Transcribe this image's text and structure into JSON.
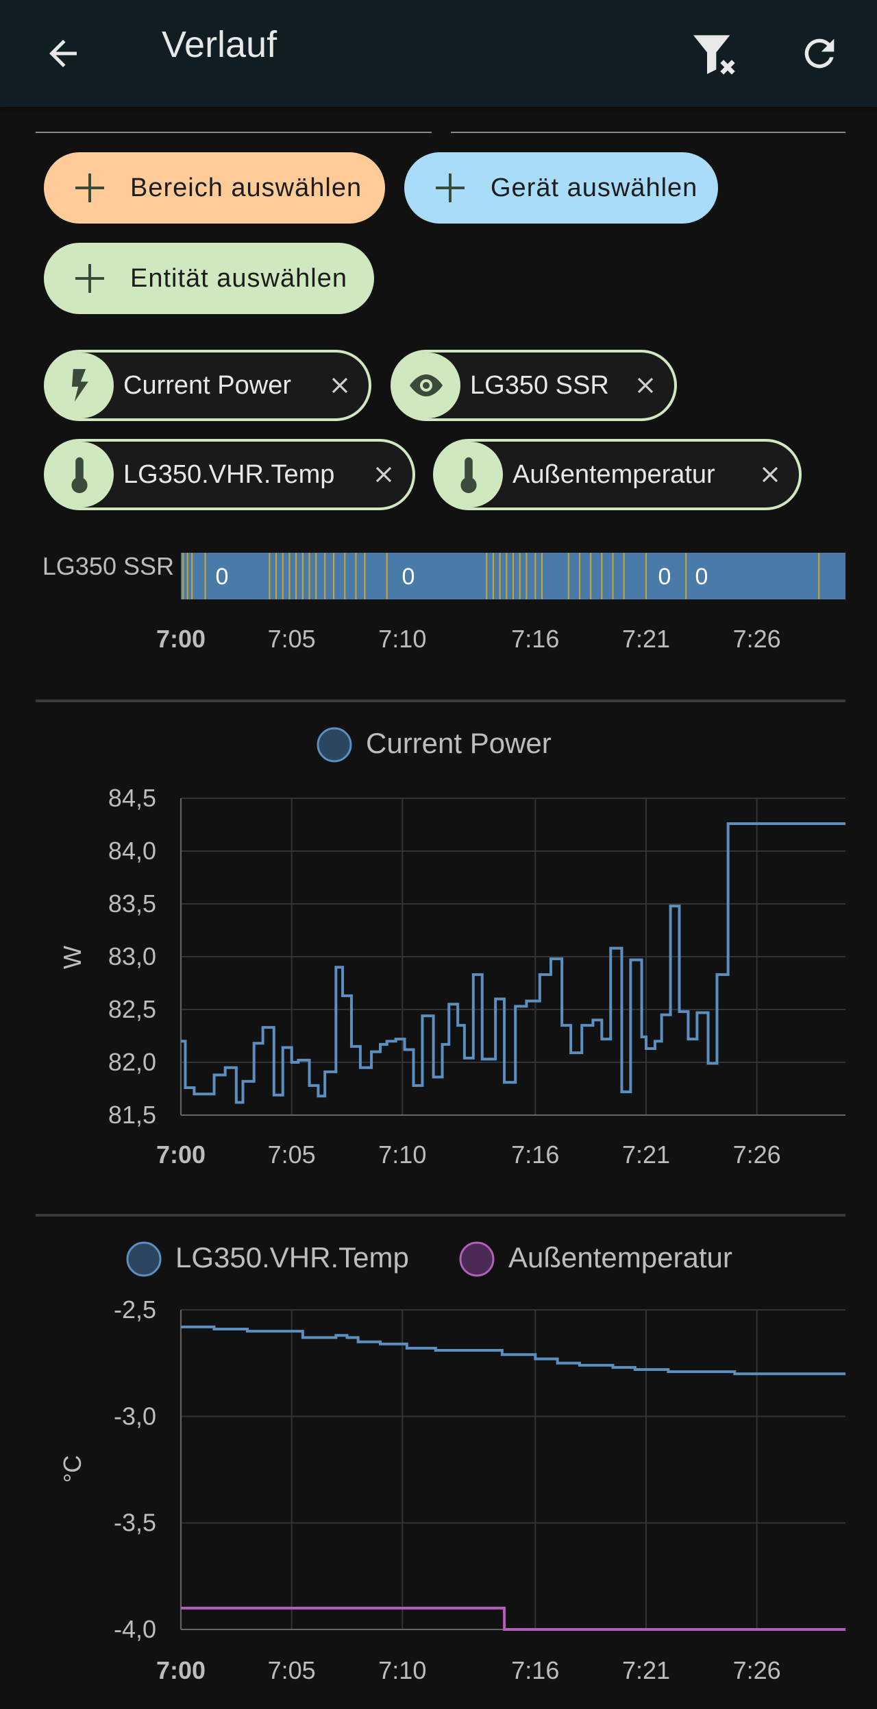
{
  "app_bar": {
    "title": "Verlauf",
    "back_icon": "arrow-left-icon",
    "filter_icon": "filter-remove-icon",
    "refresh_icon": "refresh-icon"
  },
  "target_buttons": [
    {
      "label": "Bereich auswählen",
      "icon": "plus-icon",
      "color": "#ffcc99"
    },
    {
      "label": "Gerät auswählen",
      "icon": "plus-icon",
      "color": "#a8dcf8"
    },
    {
      "label": "Entität auswählen",
      "icon": "plus-icon",
      "color": "#cfe8c0"
    }
  ],
  "chips": [
    {
      "label": "Current Power",
      "icon": "lightning-icon"
    },
    {
      "label": "LG350 SSR",
      "icon": "eye-icon"
    },
    {
      "label": "LG350.VHR.Temp",
      "icon": "thermometer-icon"
    },
    {
      "label": "Außentemperatur",
      "icon": "thermometer-icon"
    }
  ],
  "chart_data": [
    {
      "type": "timeline",
      "row_label": "LG350 SSR",
      "segment_labels": [
        "0",
        "0",
        "0",
        "0"
      ],
      "x_ticks": [
        "7:00",
        "7:05",
        "7:10",
        "7:16",
        "7:21",
        "7:26"
      ],
      "bar_color": "#4a7aa8",
      "marker_color": "#c8a830"
    },
    {
      "type": "line",
      "step": true,
      "series": [
        {
          "name": "Current Power",
          "color": "#5b8fc0"
        }
      ],
      "ylabel": "W",
      "y_ticks": [
        "84,5",
        "84,0",
        "83,5",
        "83,0",
        "82,5",
        "82,0",
        "81,5"
      ],
      "ylim": [
        81.5,
        84.5
      ],
      "x_ticks": [
        "7:00",
        "7:05",
        "7:10",
        "7:16",
        "7:21",
        "7:26"
      ],
      "xlim_minutes": [
        0,
        30
      ],
      "x": [
        0,
        0.2,
        0.6,
        1.5,
        2,
        2.5,
        2.8,
        3.3,
        3.7,
        4.2,
        4.6,
        5,
        5.3,
        5.8,
        6.2,
        6.5,
        7,
        7.3,
        7.7,
        8.1,
        8.6,
        9,
        9.3,
        9.7,
        10.1,
        10.5,
        10.9,
        11.4,
        11.8,
        12.1,
        12.5,
        12.8,
        13.2,
        13.6,
        14.2,
        14.6,
        15.1,
        15.6,
        16.2,
        16.7,
        17.2,
        17.6,
        18.1,
        18.6,
        19,
        19.4,
        19.9,
        20.3,
        20.8,
        21,
        21.4,
        21.7,
        22.1,
        22.5,
        22.9,
        23.3,
        23.8,
        24.2,
        24.7,
        25,
        25.5,
        25.8,
        26.2,
        26.7,
        27.1,
        27.4,
        27.9,
        28.3,
        28.6,
        29.3,
        29.7,
        30
      ],
      "values": [
        82.2,
        81.76,
        81.7,
        81.88,
        81.95,
        81.62,
        81.82,
        82.18,
        82.33,
        81.69,
        82.14,
        82.0,
        82.02,
        81.78,
        81.68,
        81.91,
        82.9,
        82.63,
        82.15,
        81.95,
        82.1,
        82.17,
        82.2,
        82.22,
        82.12,
        81.78,
        82.44,
        81.86,
        82.17,
        82.55,
        82.35,
        82.04,
        82.83,
        82.03,
        82.6,
        81.81,
        82.53,
        82.58,
        82.83,
        82.98,
        82.35,
        82.09,
        82.35,
        82.4,
        82.22,
        83.08,
        81.72,
        82.97,
        82.24,
        82.13,
        82.2,
        82.45,
        83.48,
        82.48,
        82.22,
        82.47,
        81.99,
        82.83,
        84.26,
        84.26,
        84.26,
        84.26,
        84.26,
        84.26,
        84.26,
        84.26,
        84.26,
        84.26,
        84.26,
        84.26,
        84.26,
        84.26
      ]
    },
    {
      "type": "line",
      "step": true,
      "series": [
        {
          "name": "LG350.VHR.Temp",
          "color": "#5b8fc0",
          "x": [
            0,
            1.5,
            3,
            5.5,
            7,
            7.5,
            8,
            9,
            10.2,
            11.5,
            14.5,
            16,
            17,
            18,
            19.5,
            20.5,
            22,
            25,
            30
          ],
          "values": [
            -2.58,
            -2.59,
            -2.6,
            -2.63,
            -2.62,
            -2.63,
            -2.65,
            -2.66,
            -2.68,
            -2.69,
            -2.71,
            -2.73,
            -2.75,
            -2.76,
            -2.77,
            -2.78,
            -2.79,
            -2.8,
            -2.8
          ]
        },
        {
          "name": "Außentemperatur",
          "color": "#b060b8",
          "x": [
            0,
            14.6,
            30
          ],
          "values": [
            -3.9,
            -4.0,
            -4.0
          ]
        }
      ],
      "ylabel": "°C",
      "y_ticks": [
        "-2,5",
        "-3,0",
        "-3,5",
        "-4,0"
      ],
      "ylim": [
        -4.0,
        -2.5
      ],
      "x_ticks": [
        "7:00",
        "7:05",
        "7:10",
        "7:16",
        "7:21",
        "7:26"
      ],
      "xlim_minutes": [
        0,
        30
      ]
    }
  ]
}
